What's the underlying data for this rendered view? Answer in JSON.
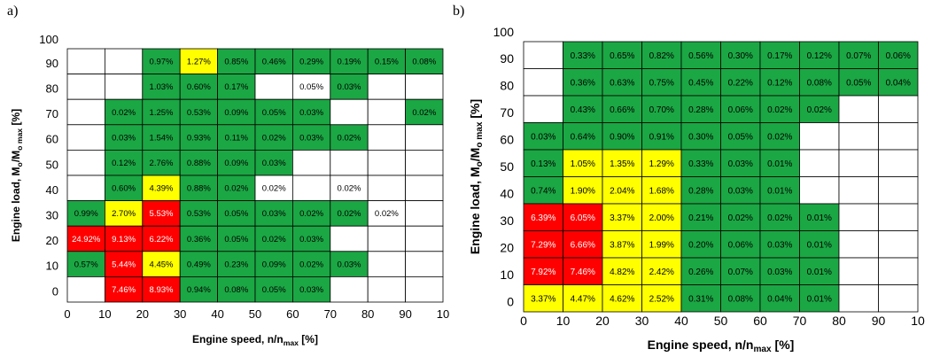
{
  "panels": [
    {
      "letter": "a)",
      "chart_data": {
        "type": "heatmap",
        "title": "",
        "xlabel": "Engine speed, n/n",
        "xlabel_sub": "max",
        "xlabel_suffix": " [%]",
        "ylabel": "Engine load, M",
        "ylabel_sub1": "o",
        "ylabel_mid": "/M",
        "ylabel_sub2": "o max",
        "ylabel_suffix": " [%]",
        "x_ticks": [
          "0",
          "10",
          "20",
          "30",
          "40",
          "50",
          "60",
          "70",
          "80",
          "90",
          "10"
        ],
        "y_ticks": [
          "0",
          "10",
          "20",
          "30",
          "40",
          "50",
          "60",
          "70",
          "80",
          "90",
          "100"
        ],
        "rows_top_to_bottom": [
          [
            "",
            "",
            "0.97%",
            "1.27%",
            "0.85%",
            "0.46%",
            "0.29%",
            "0.19%",
            "0.15%",
            "0.08%"
          ],
          [
            "",
            "",
            "1.03%",
            "0.60%",
            "0.17%",
            "",
            "0.05%",
            "0.03%",
            "",
            ""
          ],
          [
            "",
            "0.02%",
            "1.25%",
            "0.53%",
            "0.09%",
            "0.05%",
            "0.03%",
            "",
            "",
            "0.02%"
          ],
          [
            "",
            "0.03%",
            "1.54%",
            "0.93%",
            "0.11%",
            "0.02%",
            "0.03%",
            "0.02%",
            "",
            ""
          ],
          [
            "",
            "0.12%",
            "2.76%",
            "0.88%",
            "0.09%",
            "0.03%",
            "",
            "",
            "",
            ""
          ],
          [
            "",
            "0.60%",
            "4.39%",
            "0.88%",
            "0.02%",
            "0.02%",
            "",
            "0.02%",
            "",
            ""
          ],
          [
            "0.99%",
            "2.70%",
            "5.53%",
            "0.53%",
            "0.05%",
            "0.03%",
            "0.02%",
            "0.02%",
            "0.02%",
            ""
          ],
          [
            "24.92%",
            "9.13%",
            "6.22%",
            "0.36%",
            "0.05%",
            "0.02%",
            "0.03%",
            "",
            "",
            ""
          ],
          [
            "0.57%",
            "5.44%",
            "4.45%",
            "0.49%",
            "0.23%",
            "0.09%",
            "0.02%",
            "0.03%",
            "",
            ""
          ],
          [
            "",
            "7.46%",
            "8.93%",
            "0.94%",
            "0.08%",
            "0.05%",
            "0.03%",
            "",
            "",
            ""
          ]
        ],
        "color_rows_top_to_bottom": [
          "wwgygggggg",
          "wwggggwgww",
          "wggggggwwg",
          "wggggggoww",
          "wggggggwww",
          "wgyggwgwww",
          "gyrgggggwww",
          "rrrggggwww",
          "grygggggww",
          "wrrggggwww"
        ]
      }
    },
    {
      "letter": "b)",
      "chart_data": {
        "type": "heatmap",
        "title": "",
        "xlabel": "Engine speed, n/n",
        "xlabel_sub": "max",
        "xlabel_suffix": " [%]",
        "ylabel": "Engine load, M",
        "ylabel_sub1": "o",
        "ylabel_mid": "/M",
        "ylabel_sub2": "o max",
        "ylabel_suffix": " [%]",
        "x_ticks": [
          "0",
          "10",
          "20",
          "30",
          "40",
          "50",
          "60",
          "70",
          "80",
          "90",
          "10"
        ],
        "y_ticks": [
          "0",
          "10",
          "20",
          "30",
          "40",
          "50",
          "60",
          "70",
          "80",
          "90",
          "100"
        ],
        "rows_top_to_bottom": [
          [
            "",
            "0.33%",
            "0.65%",
            "0.82%",
            "0.56%",
            "0.30%",
            "0.17%",
            "0.12%",
            "0.07%",
            "0.06%"
          ],
          [
            "",
            "0.36%",
            "0.63%",
            "0.75%",
            "0.45%",
            "0.22%",
            "0.12%",
            "0.08%",
            "0.05%",
            "0.04%"
          ],
          [
            "",
            "0.43%",
            "0.66%",
            "0.70%",
            "0.28%",
            "0.06%",
            "0.02%",
            "0.02%",
            "",
            ""
          ],
          [
            "0.03%",
            "0.64%",
            "0.90%",
            "0.91%",
            "0.30%",
            "0.05%",
            "0.02%",
            "",
            "",
            ""
          ],
          [
            "0.13%",
            "1.05%",
            "1.35%",
            "1.29%",
            "0.33%",
            "0.03%",
            "0.01%",
            "",
            "",
            ""
          ],
          [
            "0.74%",
            "1.90%",
            "2.04%",
            "1.68%",
            "0.28%",
            "0.03%",
            "0.01%",
            "",
            "",
            ""
          ],
          [
            "6.39%",
            "6.05%",
            "3.37%",
            "2.00%",
            "0.21%",
            "0.02%",
            "0.02%",
            "0.01%",
            "",
            ""
          ],
          [
            "7.29%",
            "6.66%",
            "3.87%",
            "1.99%",
            "0.20%",
            "0.06%",
            "0.03%",
            "0.01%",
            "",
            ""
          ],
          [
            "7.92%",
            "7.46%",
            "4.82%",
            "2.42%",
            "0.26%",
            "0.07%",
            "0.03%",
            "0.01%",
            "",
            ""
          ],
          [
            "3.37%",
            "4.47%",
            "4.62%",
            "2.52%",
            "0.31%",
            "0.08%",
            "0.04%",
            "0.01%",
            "",
            ""
          ]
        ],
        "color_rows_top_to_bottom": [
          "wggggggggg",
          "wggggggggg",
          "wggggggggww",
          "gggggggwww",
          "gyyygggwww",
          "gyyygggwww",
          "rryygggggww",
          "rryygggggww",
          "rryygggggww",
          "yyyygggggww"
        ]
      }
    }
  ],
  "colors": {
    "green": "#1ba744",
    "yellow": "#ffff00",
    "red": "#ff0000",
    "white": "#ffffff",
    "grid": "#000000"
  }
}
